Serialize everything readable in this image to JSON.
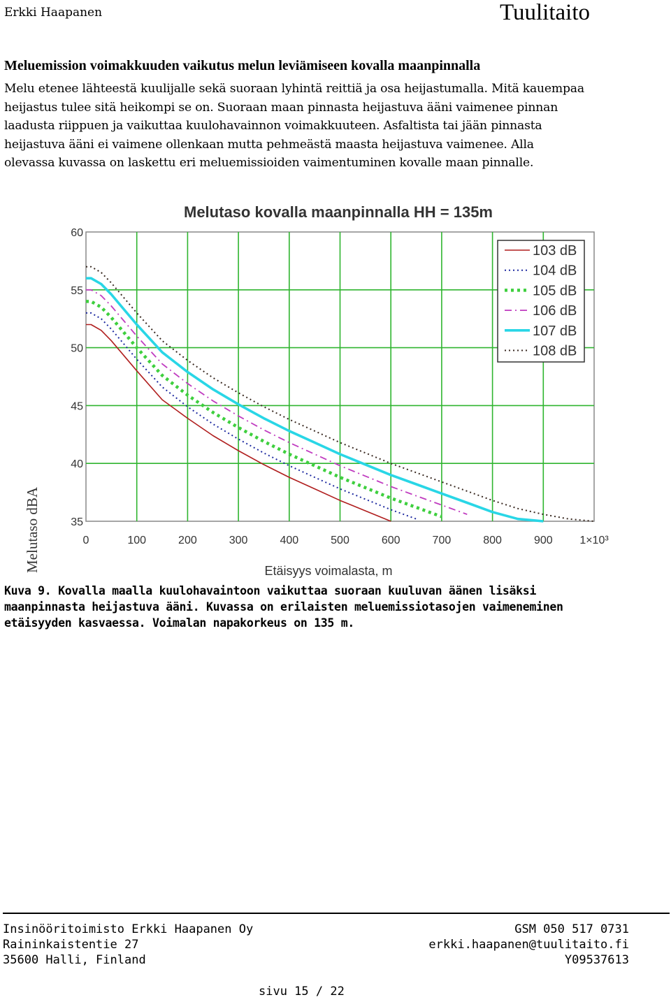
{
  "header": {
    "author": "Erkki Haapanen",
    "brand": "Tuulitaito"
  },
  "section": {
    "heading": "Meluemission voimakkuuden vaikutus melun leviämiseen kovalla maanpinnalla",
    "lines": [
      "Melu etenee lähteestä kuulijalle sekä suoraan lyhintä reittiä ja osa heijastumalla. Mitä kauempaa",
      "heijastus tulee sitä heikompi se on. Suoraan maan pinnasta heijastuva ääni vaimenee pinnan",
      "laadusta riippuen ja vaikuttaa kuulohavainnon voimakkuuteen. Asfaltista tai jään pinnasta",
      "heijastuva ääni ei vaimene ollenkaan mutta pehmeästä maasta heijastuva vaimenee. Alla",
      "olevassa kuvassa on laskettu eri meluemissioiden vaimentuminen kovalle maan pinnalle."
    ]
  },
  "chart_data": {
    "type": "line",
    "title": "Melutaso kovalla maanpinnalla HH = 135m",
    "xlabel": "Etäisyys voimalasta, m",
    "ylabel": "Melutaso dBA",
    "xlim": [
      0,
      1000
    ],
    "ylim": [
      35,
      60
    ],
    "x_ticks": [
      "0",
      "100",
      "200",
      "300",
      "400",
      "500",
      "600",
      "700",
      "800",
      "900",
      "1×10³"
    ],
    "y_ticks": [
      "60",
      "55",
      "50",
      "45",
      "40",
      "35"
    ],
    "grid": true,
    "legend_position": "top-right",
    "x": [
      0,
      10,
      30,
      50,
      75,
      100,
      150,
      200,
      250,
      300,
      350,
      400,
      450,
      500,
      550,
      600,
      650,
      700,
      750,
      800,
      850,
      900,
      950,
      1000
    ],
    "series": [
      {
        "name": "103 dB",
        "color": "#b01e1e",
        "style": "solid",
        "values": [
          52.0,
          52.0,
          51.5,
          50.6,
          49.3,
          48.0,
          45.5,
          43.9,
          42.4,
          41.1,
          39.9,
          38.8,
          37.8,
          36.8,
          35.9,
          35.0,
          null,
          null,
          null,
          null,
          null,
          null,
          null,
          null
        ]
      },
      {
        "name": "104 dB",
        "color": "#1e2aa0",
        "style": "dotted",
        "values": [
          53.0,
          53.0,
          52.5,
          51.6,
          50.3,
          49.0,
          46.6,
          44.9,
          43.4,
          42.1,
          40.9,
          39.8,
          38.8,
          37.8,
          36.9,
          36.0,
          35.2,
          null,
          null,
          null,
          null,
          null,
          null,
          null
        ]
      },
      {
        "name": "105 dB",
        "color": "#3ecf3e",
        "style": "thick-dashed",
        "values": [
          54.0,
          54.0,
          53.5,
          52.6,
          51.3,
          50.0,
          47.6,
          45.9,
          44.4,
          43.1,
          41.9,
          40.8,
          39.8,
          38.8,
          37.9,
          37.0,
          36.2,
          35.4,
          null,
          null,
          null,
          null,
          null,
          null
        ]
      },
      {
        "name": "106 dB",
        "color": "#c03cc0",
        "style": "dash-dot",
        "values": [
          55.0,
          55.0,
          54.5,
          53.6,
          52.3,
          51.0,
          48.6,
          46.9,
          45.4,
          44.1,
          42.9,
          41.8,
          40.8,
          39.8,
          38.9,
          38.0,
          37.2,
          36.4,
          35.6,
          null,
          null,
          null,
          null,
          null
        ]
      },
      {
        "name": "107 dB",
        "color": "#29d6e6",
        "style": "thick-solid",
        "values": [
          56.0,
          56.0,
          55.5,
          54.6,
          53.3,
          52.0,
          49.6,
          47.9,
          46.4,
          45.1,
          43.9,
          42.8,
          41.8,
          40.8,
          39.9,
          39.0,
          38.2,
          37.4,
          36.6,
          35.8,
          35.2,
          35.0,
          null,
          null
        ]
      },
      {
        "name": "108 dB",
        "color": "#3a2a22",
        "style": "dotted",
        "values": [
          57.0,
          57.0,
          56.5,
          55.6,
          54.3,
          53.0,
          50.6,
          48.9,
          47.4,
          46.1,
          44.9,
          43.8,
          42.8,
          41.8,
          40.9,
          40.0,
          39.2,
          38.4,
          37.6,
          36.8,
          36.1,
          35.6,
          35.2,
          35.0
        ]
      }
    ]
  },
  "caption": {
    "lines": [
      "Kuva 9. Kovalla maalla kuulohavaintoon vaikuttaa suoraan kuuluvan äänen lisäksi",
      "maanpinnasta heijastuva ääni. Kuvassa on erilaisten meluemissiotasojen vaimeneminen",
      "etäisyyden kasvaessa. Voimalan napakorkeus on 135 m."
    ]
  },
  "footer": {
    "company": "Insinööritoimisto Erkki Haapanen Oy",
    "street": "Raininkaistentie 27",
    "city": "35600 Halli, Finland",
    "phone": "GSM 050 517 0731",
    "email": "erkki.haapanen@tuulitaito.fi",
    "business_id": "Y09537613",
    "page": "sivu  15 / 22"
  }
}
